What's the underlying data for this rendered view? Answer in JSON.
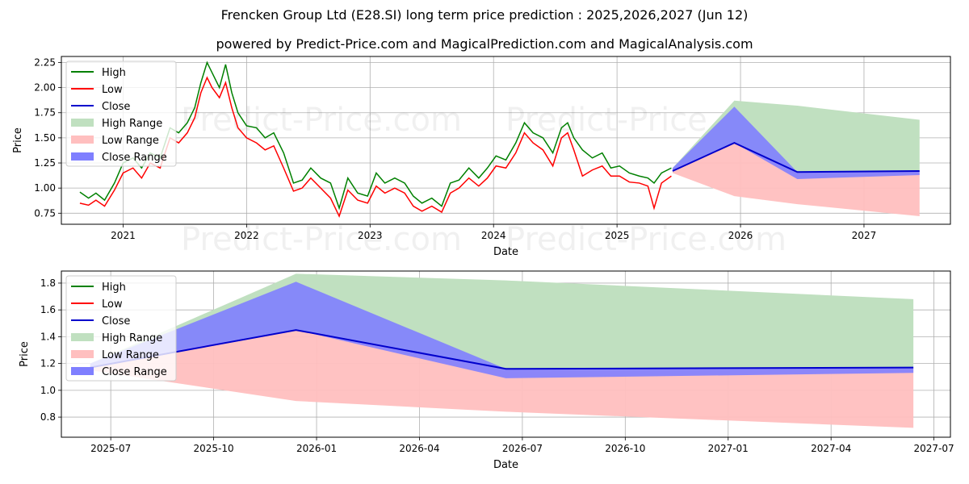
{
  "titles": {
    "line1": "Frencken Group Ltd (E28.SI) long term price prediction : 2025,2026,2027 (Jun 12)",
    "line2": "powered by Predict-Price.com and MagicalPrediction.com and MagicalAnalysis.com"
  },
  "watermark": "Predict-Price.com",
  "colors": {
    "high": "#008000",
    "low": "#ff0000",
    "close": "#0000cc",
    "high_range": "#c0e0c0",
    "low_range": "#ffbfbf",
    "close_range": "#7f7fff"
  },
  "chart_data": [
    {
      "type": "line",
      "name": "overview",
      "xlabel": "Date",
      "ylabel": "Price",
      "xlim": [
        2020.5,
        2027.7
      ],
      "ylim": [
        0.64,
        2.31
      ],
      "xticks": [
        2021,
        2022,
        2023,
        2024,
        2025,
        2026,
        2027
      ],
      "xtick_labels": [
        "2021",
        "2022",
        "2023",
        "2024",
        "2025",
        "2026",
        "2027"
      ],
      "yticks": [
        0.75,
        1.0,
        1.25,
        1.5,
        1.75,
        2.0,
        2.25
      ],
      "ytick_labels": [
        "0.75",
        "1.00",
        "1.25",
        "1.50",
        "1.75",
        "2.00",
        "2.25"
      ],
      "grid": true,
      "legend": {
        "position": "top-left",
        "entries": [
          "High",
          "Low",
          "Close",
          "High Range",
          "Low Range",
          "Close Range"
        ]
      },
      "history": {
        "x": [
          2020.65,
          2020.72,
          2020.78,
          2020.85,
          2020.93,
          2021.0,
          2021.08,
          2021.15,
          2021.22,
          2021.3,
          2021.38,
          2021.45,
          2021.52,
          2021.58,
          2021.63,
          2021.68,
          2021.72,
          2021.78,
          2021.83,
          2021.88,
          2021.93,
          2022.0,
          2022.08,
          2022.15,
          2022.22,
          2022.3,
          2022.38,
          2022.45,
          2022.52,
          2022.6,
          2022.68,
          2022.75,
          2022.82,
          2022.9,
          2022.98,
          2023.05,
          2023.12,
          2023.2,
          2023.28,
          2023.35,
          2023.42,
          2023.5,
          2023.58,
          2023.65,
          2023.72,
          2023.8,
          2023.88,
          2023.95,
          2024.02,
          2024.1,
          2024.18,
          2024.25,
          2024.32,
          2024.4,
          2024.48,
          2024.55,
          2024.6,
          2024.65,
          2024.72,
          2024.8,
          2024.88,
          2024.95,
          2025.02,
          2025.1,
          2025.18,
          2025.25,
          2025.3,
          2025.36,
          2025.44
        ],
        "high": [
          0.96,
          0.9,
          0.95,
          0.88,
          1.05,
          1.25,
          1.3,
          1.2,
          1.35,
          1.3,
          1.6,
          1.55,
          1.65,
          1.8,
          2.05,
          2.25,
          2.15,
          2.0,
          2.23,
          1.95,
          1.75,
          1.62,
          1.6,
          1.5,
          1.55,
          1.35,
          1.05,
          1.08,
          1.2,
          1.1,
          1.05,
          0.8,
          1.1,
          0.95,
          0.92,
          1.15,
          1.05,
          1.1,
          1.05,
          0.92,
          0.85,
          0.9,
          0.82,
          1.05,
          1.08,
          1.2,
          1.1,
          1.2,
          1.32,
          1.28,
          1.45,
          1.65,
          1.55,
          1.5,
          1.35,
          1.6,
          1.65,
          1.5,
          1.38,
          1.3,
          1.35,
          1.2,
          1.22,
          1.15,
          1.12,
          1.1,
          1.05,
          1.15,
          1.2
        ],
        "low": [
          0.85,
          0.83,
          0.88,
          0.82,
          0.98,
          1.15,
          1.2,
          1.1,
          1.25,
          1.2,
          1.5,
          1.45,
          1.55,
          1.7,
          1.95,
          2.1,
          2.0,
          1.9,
          2.05,
          1.8,
          1.6,
          1.5,
          1.45,
          1.38,
          1.42,
          1.2,
          0.97,
          1.0,
          1.1,
          1.0,
          0.9,
          0.72,
          0.98,
          0.88,
          0.85,
          1.02,
          0.95,
          1.0,
          0.95,
          0.82,
          0.77,
          0.82,
          0.76,
          0.95,
          1.0,
          1.1,
          1.02,
          1.1,
          1.22,
          1.2,
          1.35,
          1.55,
          1.45,
          1.38,
          1.22,
          1.5,
          1.55,
          1.38,
          1.12,
          1.18,
          1.22,
          1.12,
          1.12,
          1.06,
          1.05,
          1.02,
          0.8,
          1.05,
          1.12
        ]
      },
      "forecast": {
        "x": [
          2025.45,
          2025.95,
          2026.46,
          2027.45
        ],
        "high_range": [
          [
            1.2,
            1.2
          ],
          [
            1.45,
            1.87
          ],
          [
            1.16,
            1.82
          ],
          [
            1.17,
            1.68
          ]
        ],
        "low_range": [
          [
            1.15,
            1.2
          ],
          [
            0.92,
            1.45
          ],
          [
            0.84,
            1.16
          ],
          [
            0.72,
            1.17
          ]
        ],
        "close_range": [
          [
            1.17,
            1.2
          ],
          [
            1.45,
            1.81
          ],
          [
            1.09,
            1.16
          ],
          [
            1.13,
            1.17
          ]
        ],
        "close": [
          1.17,
          1.45,
          1.16,
          1.17
        ]
      }
    },
    {
      "type": "area",
      "name": "forecast-detail",
      "xlabel": "Date",
      "ylabel": "Price",
      "xlim": [
        2025.38,
        2027.54
      ],
      "ylim": [
        0.65,
        1.89
      ],
      "xticks": [
        2025.5,
        2025.75,
        2026.0,
        2026.25,
        2026.5,
        2026.75,
        2027.0,
        2027.25,
        2027.5
      ],
      "xtick_labels": [
        "2025-07",
        "2025-10",
        "2026-01",
        "2026-04",
        "2026-07",
        "2026-10",
        "2027-01",
        "2027-04",
        "2027-07"
      ],
      "yticks": [
        0.8,
        1.0,
        1.2,
        1.4,
        1.6,
        1.8
      ],
      "ytick_labels": [
        "0.8",
        "1.0",
        "1.2",
        "1.4",
        "1.6",
        "1.8"
      ],
      "grid": true,
      "legend": {
        "position": "top-left",
        "entries": [
          "High",
          "Low",
          "Close",
          "High Range",
          "Low Range",
          "Close Range"
        ]
      },
      "forecast": {
        "x": [
          2025.45,
          2025.95,
          2026.46,
          2027.45
        ],
        "high_range": [
          [
            1.2,
            1.2
          ],
          [
            1.45,
            1.87
          ],
          [
            1.16,
            1.82
          ],
          [
            1.17,
            1.68
          ]
        ],
        "low_range": [
          [
            1.15,
            1.2
          ],
          [
            0.92,
            1.45
          ],
          [
            0.84,
            1.16
          ],
          [
            0.72,
            1.17
          ]
        ],
        "close_range": [
          [
            1.17,
            1.2
          ],
          [
            1.45,
            1.81
          ],
          [
            1.09,
            1.16
          ],
          [
            1.13,
            1.17
          ]
        ],
        "close": [
          1.17,
          1.45,
          1.16,
          1.17
        ]
      }
    }
  ]
}
